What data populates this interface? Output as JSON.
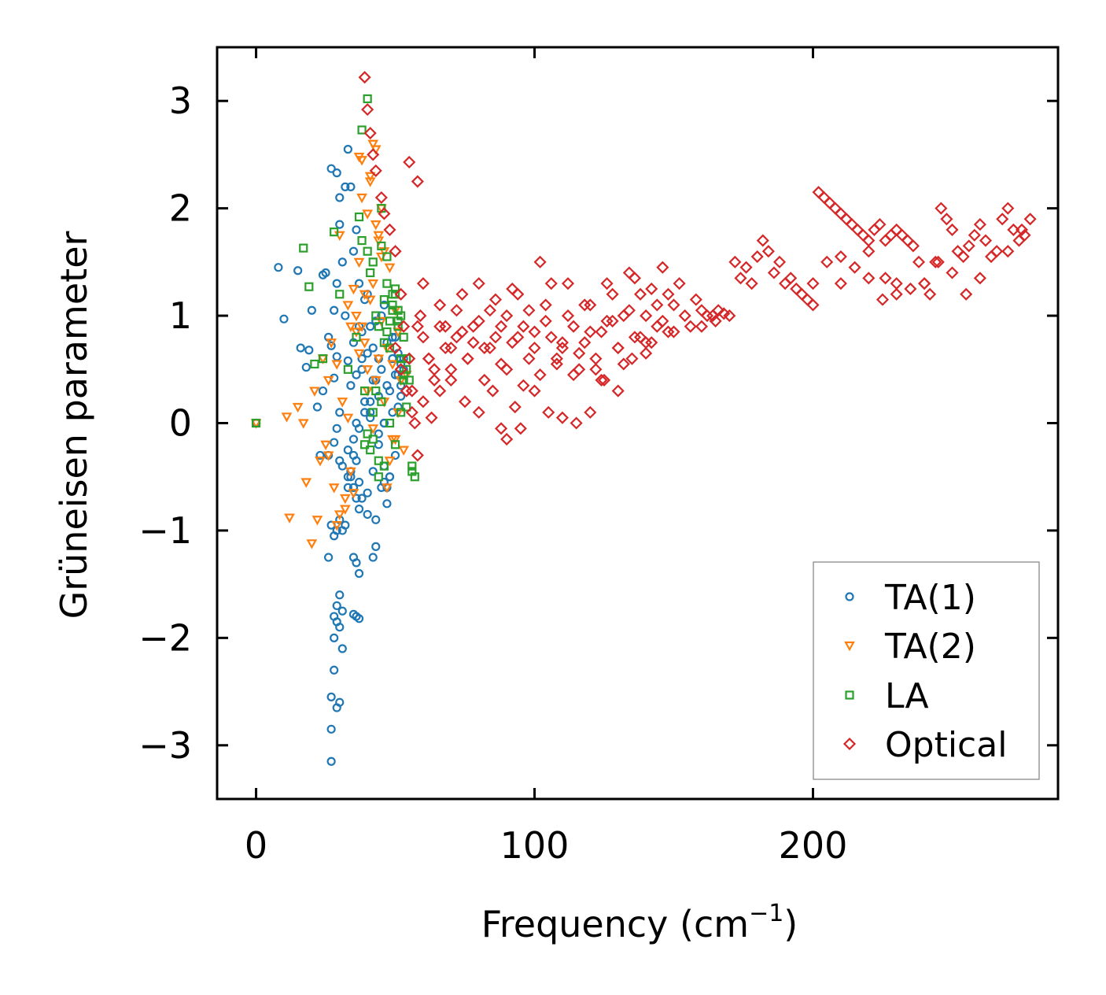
{
  "chart_data": {
    "type": "scatter",
    "title": "",
    "xlabel": "Frequency (cm",
    "xlabel_sup": "−1",
    "xlabel_close": ")",
    "ylabel": "Grüneisen parameter",
    "xlim": [
      -14,
      288
    ],
    "ylim": [
      -3.5,
      3.5
    ],
    "xticks": [
      0,
      100,
      200
    ],
    "xtick_labels": [
      "0",
      "100",
      "200"
    ],
    "yticks": [
      -3,
      -2,
      -1,
      0,
      1,
      2,
      3
    ],
    "ytick_labels": [
      "−3",
      "−2",
      "−1",
      "0",
      "1",
      "2",
      "3"
    ],
    "grid": false,
    "legend_position": "lower-right",
    "series": [
      {
        "name": "TA(1)",
        "color": "#1f77b4",
        "marker": "circle",
        "x": [
          0,
          8,
          10,
          15,
          16,
          18,
          19,
          20,
          22,
          23,
          24,
          25,
          26,
          27,
          27,
          28,
          28,
          28,
          29,
          29,
          29,
          29,
          30,
          30,
          30,
          31,
          31,
          32,
          32,
          33,
          33,
          33,
          34,
          34,
          35,
          35,
          35,
          36,
          36,
          36,
          37,
          37,
          37,
          38,
          38,
          39,
          39,
          40,
          40,
          41,
          41,
          42,
          42,
          43,
          43,
          44,
          44,
          44,
          45,
          45,
          46,
          46,
          46,
          47,
          47,
          48,
          48,
          49,
          49,
          50,
          50,
          51,
          51,
          52,
          52,
          53,
          27,
          28,
          29,
          30,
          27,
          28,
          29,
          30,
          31,
          27,
          28,
          29,
          30,
          31,
          26,
          27,
          35,
          36,
          37,
          35,
          36,
          37,
          34,
          35,
          36,
          43,
          42,
          28,
          31,
          33,
          30,
          33,
          35,
          37,
          39,
          41,
          36,
          44,
          46,
          48,
          38,
          42,
          45,
          40,
          47,
          50,
          53,
          51,
          49,
          52,
          37,
          40,
          34,
          32,
          26,
          29,
          30,
          24,
          43,
          46,
          38,
          41,
          47
        ],
        "y": [
          0.0,
          1.45,
          0.97,
          1.42,
          0.7,
          0.52,
          0.68,
          1.05,
          0.15,
          -0.3,
          1.38,
          1.4,
          0.8,
          2.37,
          0.72,
          1.05,
          -0.18,
          0.42,
          2.33,
          1.3,
          -0.05,
          0.62,
          2.1,
          1.85,
          0.1,
          1.5,
          -0.4,
          2.2,
          1.0,
          2.55,
          0.58,
          -0.6,
          2.2,
          0.35,
          1.6,
          -0.3,
          0.75,
          1.8,
          0.0,
          0.45,
          1.3,
          -0.55,
          0.9,
          0.6,
          -0.7,
          1.15,
          0.2,
          0.65,
          -0.85,
          0.05,
          0.9,
          -0.45,
          0.4,
          0.95,
          -0.9,
          0.6,
          -0.1,
          0.25,
          0.5,
          -0.6,
          1.1,
          0.0,
          -0.4,
          0.75,
          -0.6,
          0.3,
          -0.5,
          0.6,
          0.1,
          0.8,
          0.45,
          0.65,
          0.15,
          0.55,
          0.35,
          0.5,
          -2.55,
          -2.3,
          -2.65,
          -2.6,
          -2.85,
          -2.0,
          -1.85,
          -1.9,
          -2.1,
          -3.15,
          -1.8,
          -1.7,
          -1.6,
          -1.75,
          -1.25,
          -0.95,
          -1.25,
          -1.3,
          -1.4,
          -1.78,
          -1.8,
          -1.82,
          -0.5,
          -0.6,
          -0.7,
          -1.15,
          -1.25,
          -1.05,
          -1.0,
          -0.5,
          -0.9,
          -0.25,
          -0.15,
          -0.05,
          0.1,
          0.2,
          -0.35,
          -0.2,
          0.0,
          -0.5,
          0.5,
          0.7,
          1.0,
          1.2,
          0.35,
          -0.3,
          0.6,
          0.45,
          0.8,
          0.25,
          -0.8,
          -0.65,
          -0.45,
          -0.95,
          -0.3,
          -1.0,
          -0.35,
          0.3,
          0.4,
          -0.55,
          0.85,
          0.1,
          -0.75
        ]
      },
      {
        "name": "TA(2)",
        "color": "#ff7f0e",
        "marker": "triangle-down",
        "x": [
          0,
          11,
          12,
          15,
          17,
          18,
          20,
          21,
          22,
          23,
          24,
          25,
          26,
          27,
          28,
          29,
          30,
          31,
          32,
          33,
          34,
          35,
          36,
          37,
          38,
          39,
          40,
          41,
          42,
          43,
          44,
          45,
          46,
          47,
          48,
          49,
          50,
          51,
          52,
          53,
          54,
          37,
          38,
          40,
          41,
          42,
          43,
          44,
          45,
          30,
          32,
          34,
          36,
          38,
          40,
          42,
          44,
          46,
          48,
          50,
          35,
          39,
          43,
          47,
          51,
          26,
          29,
          33,
          37,
          41,
          45,
          49
        ],
        "y": [
          0.0,
          0.06,
          -0.88,
          0.15,
          0.0,
          -0.55,
          -1.12,
          0.3,
          -0.9,
          -0.35,
          0.6,
          -0.2,
          0.4,
          0.75,
          -0.6,
          0.55,
          1.75,
          0.2,
          -0.8,
          1.1,
          0.9,
          -0.65,
          0.85,
          1.5,
          2.45,
          1.2,
          0.5,
          2.25,
          1.3,
          2.55,
          1.75,
          2.0,
          1.6,
          0.7,
          1.45,
          -0.15,
          1.05,
          0.85,
          0.4,
          -0.25,
          0.45,
          2.48,
          2.1,
          1.95,
          2.3,
          2.6,
          1.85,
          1.7,
          1.55,
          -0.85,
          -0.7,
          -0.45,
          1.0,
          0.9,
          0.3,
          -0.05,
          0.6,
          0.2,
          -0.35,
          -0.15,
          1.25,
          0.75,
          0.4,
          -0.6,
          0.1,
          -0.3,
          -0.95,
          0.05,
          0.65,
          1.15,
          0.95,
          0.55
        ]
      },
      {
        "name": "LA",
        "color": "#2ca02c",
        "marker": "square",
        "x": [
          0,
          17,
          19,
          21,
          24,
          28,
          30,
          33,
          36,
          37,
          38,
          39,
          40,
          41,
          42,
          43,
          44,
          45,
          46,
          47,
          48,
          49,
          50,
          51,
          52,
          53,
          54,
          55,
          56,
          57,
          39,
          40,
          41,
          42,
          43,
          44,
          45,
          46,
          47,
          48,
          49,
          50,
          51,
          52,
          53,
          54,
          45,
          47,
          49,
          51,
          53,
          44,
          46,
          48,
          50,
          52,
          54,
          56,
          38,
          40,
          42
        ],
        "y": [
          0.0,
          1.63,
          1.27,
          0.55,
          0.6,
          1.78,
          1.2,
          0.5,
          0.8,
          1.92,
          2.73,
          0.3,
          3.02,
          1.4,
          1.5,
          1.0,
          0.9,
          2.0,
          1.15,
          1.3,
          0.7,
          1.05,
          1.2,
          0.95,
          1.0,
          0.45,
          0.6,
          0.4,
          -0.4,
          -0.5,
          -0.2,
          -0.1,
          -0.25,
          0.1,
          0.3,
          -0.35,
          0.2,
          0.75,
          0.85,
          0.95,
          1.1,
          1.25,
          0.9,
          0.6,
          0.4,
          0.15,
          1.65,
          1.55,
          1.2,
          1.05,
          0.8,
          -0.5,
          -0.4,
          0.0,
          -0.2,
          0.1,
          0.5,
          -0.45,
          1.7,
          1.6,
          -0.15
        ]
      },
      {
        "name": "Optical",
        "color": "#d62728",
        "marker": "diamond",
        "x": [
          39,
          40,
          41,
          42,
          43,
          45,
          46,
          48,
          50,
          52,
          53,
          55,
          56,
          57,
          58,
          59,
          60,
          62,
          64,
          66,
          68,
          70,
          72,
          74,
          76,
          78,
          80,
          82,
          84,
          86,
          88,
          90,
          92,
          94,
          96,
          98,
          100,
          102,
          104,
          106,
          108,
          110,
          112,
          114,
          116,
          118,
          120,
          122,
          124,
          126,
          128,
          130,
          132,
          134,
          136,
          138,
          140,
          142,
          144,
          146,
          148,
          150,
          152,
          154,
          156,
          158,
          160,
          162,
          164,
          166,
          168,
          172,
          174,
          176,
          178,
          180,
          182,
          184,
          186,
          188,
          190,
          192,
          194,
          196,
          198,
          200,
          202,
          204,
          206,
          208,
          210,
          212,
          214,
          216,
          218,
          220,
          222,
          224,
          226,
          228,
          230,
          232,
          234,
          236,
          238,
          240,
          242,
          244,
          246,
          248,
          250,
          252,
          254,
          256,
          258,
          260,
          262,
          264,
          266,
          268,
          270,
          272,
          274,
          276,
          278,
          55,
          58,
          60,
          63,
          66,
          70,
          75,
          80,
          85,
          88,
          90,
          93,
          95,
          100,
          105,
          110,
          115,
          120,
          125,
          130,
          135,
          140,
          150,
          160,
          165,
          170,
          200,
          205,
          210,
          215,
          220,
          226,
          230,
          235,
          240,
          245,
          250,
          255,
          260,
          270,
          275,
          210,
          220,
          225,
          230,
          50,
          52,
          54,
          56,
          58,
          60,
          62,
          64,
          66,
          68,
          70,
          72,
          74,
          76,
          78,
          80,
          82,
          84,
          86,
          88,
          90,
          92,
          94,
          96,
          98,
          100,
          102,
          104,
          106,
          108,
          110,
          112,
          114,
          116,
          118,
          120,
          122,
          124,
          126,
          128,
          130,
          132,
          134,
          136,
          138,
          140,
          142,
          144,
          146,
          148
        ],
        "y": [
          3.22,
          2.92,
          2.7,
          2.5,
          2.35,
          2.1,
          1.95,
          1.8,
          1.6,
          1.2,
          0.9,
          0.6,
          0.3,
          0.0,
          -0.3,
          1.0,
          0.8,
          0.6,
          0.5,
          1.1,
          0.9,
          0.7,
          1.05,
          0.85,
          0.6,
          0.75,
          0.95,
          0.7,
          1.05,
          0.8,
          0.55,
          1.0,
          0.75,
          1.2,
          0.9,
          0.6,
          0.85,
          1.5,
          1.1,
          0.8,
          0.6,
          0.7,
          1.3,
          0.9,
          0.5,
          0.75,
          1.1,
          0.6,
          0.85,
          1.3,
          0.95,
          0.7,
          1.0,
          1.4,
          0.8,
          1.2,
          1.0,
          0.75,
          1.1,
          0.95,
          1.2,
          1.1,
          1.3,
          1.0,
          0.9,
          1.15,
          1.05,
          1.0,
          1.0,
          1.05,
          1.02,
          1.5,
          1.35,
          1.45,
          1.3,
          1.55,
          1.7,
          1.6,
          1.4,
          1.5,
          1.3,
          1.35,
          1.25,
          1.2,
          1.15,
          1.3,
          2.15,
          2.1,
          2.05,
          2.0,
          1.95,
          1.9,
          1.85,
          1.8,
          1.75,
          1.7,
          1.8,
          1.85,
          1.7,
          1.75,
          1.8,
          1.75,
          1.7,
          1.65,
          1.5,
          1.3,
          1.2,
          1.5,
          2.0,
          1.9,
          1.8,
          1.6,
          1.55,
          1.65,
          1.75,
          1.85,
          1.7,
          1.55,
          1.6,
          1.9,
          2.0,
          1.8,
          1.7,
          1.75,
          1.9,
          2.43,
          2.25,
          0.2,
          0.05,
          0.3,
          0.4,
          0.2,
          0.1,
          0.3,
          -0.05,
          -0.15,
          0.15,
          -0.05,
          0.3,
          0.1,
          0.05,
          0.0,
          0.1,
          0.4,
          0.3,
          0.6,
          0.75,
          0.85,
          0.9,
          0.95,
          1.0,
          1.1,
          1.5,
          1.55,
          1.45,
          1.6,
          1.35,
          1.3,
          1.25,
          1.3,
          1.5,
          1.4,
          1.2,
          1.35,
          1.6,
          1.8,
          1.3,
          1.35,
          1.15,
          1.2,
          0.7,
          0.5,
          0.3,
          0.1,
          0.9,
          1.3,
          0.6,
          0.4,
          0.9,
          0.7,
          0.5,
          0.8,
          1.2,
          0.6,
          0.9,
          1.3,
          0.4,
          0.7,
          1.15,
          0.9,
          0.5,
          1.25,
          0.8,
          0.35,
          1.05,
          0.7,
          0.45,
          0.95,
          1.3,
          0.55,
          0.75,
          1.0,
          0.45,
          0.65,
          1.1,
          0.85,
          0.5,
          0.4,
          0.95,
          1.2,
          0.7,
          0.55,
          1.05,
          1.35,
          0.8,
          0.65,
          1.25,
          0.9,
          1.45,
          0.85
        ]
      }
    ]
  }
}
